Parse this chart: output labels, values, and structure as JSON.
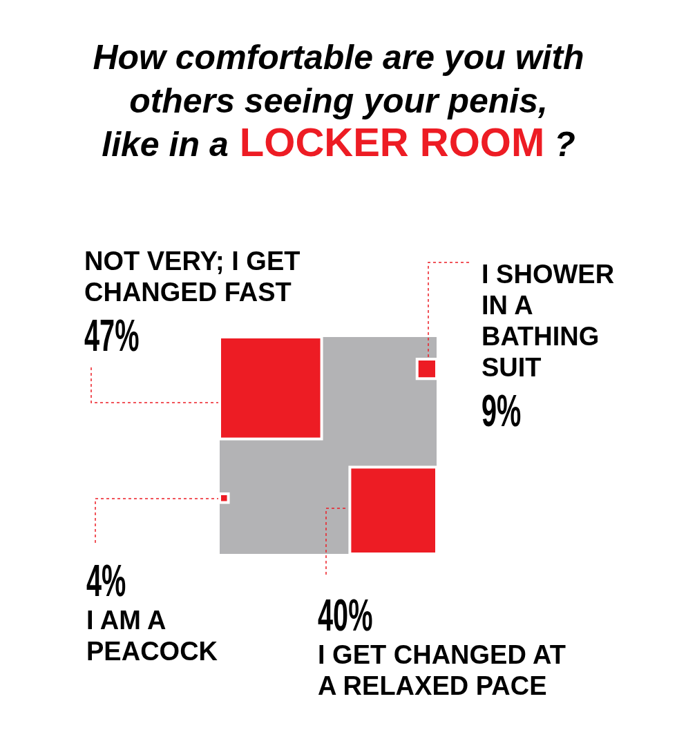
{
  "chart_data": {
    "type": "other",
    "title": "How comfortable are you with others seeing your penis, like in a LOCKER ROOM ?",
    "categories": [
      "NOT VERY; I GET CHANGED FAST",
      "I SHOWER IN A BATHING SUIT",
      "I AM A PEACOCK",
      "I GET CHANGED AT A RELAXED PACE"
    ],
    "values": [
      47,
      9,
      4,
      40
    ],
    "value_labels": [
      "47%",
      "9%",
      "4%",
      "40%"
    ],
    "colors": [
      "#ed1c24",
      "#ed1c24",
      "#ed1c24",
      "#ed1c24"
    ]
  }
}
